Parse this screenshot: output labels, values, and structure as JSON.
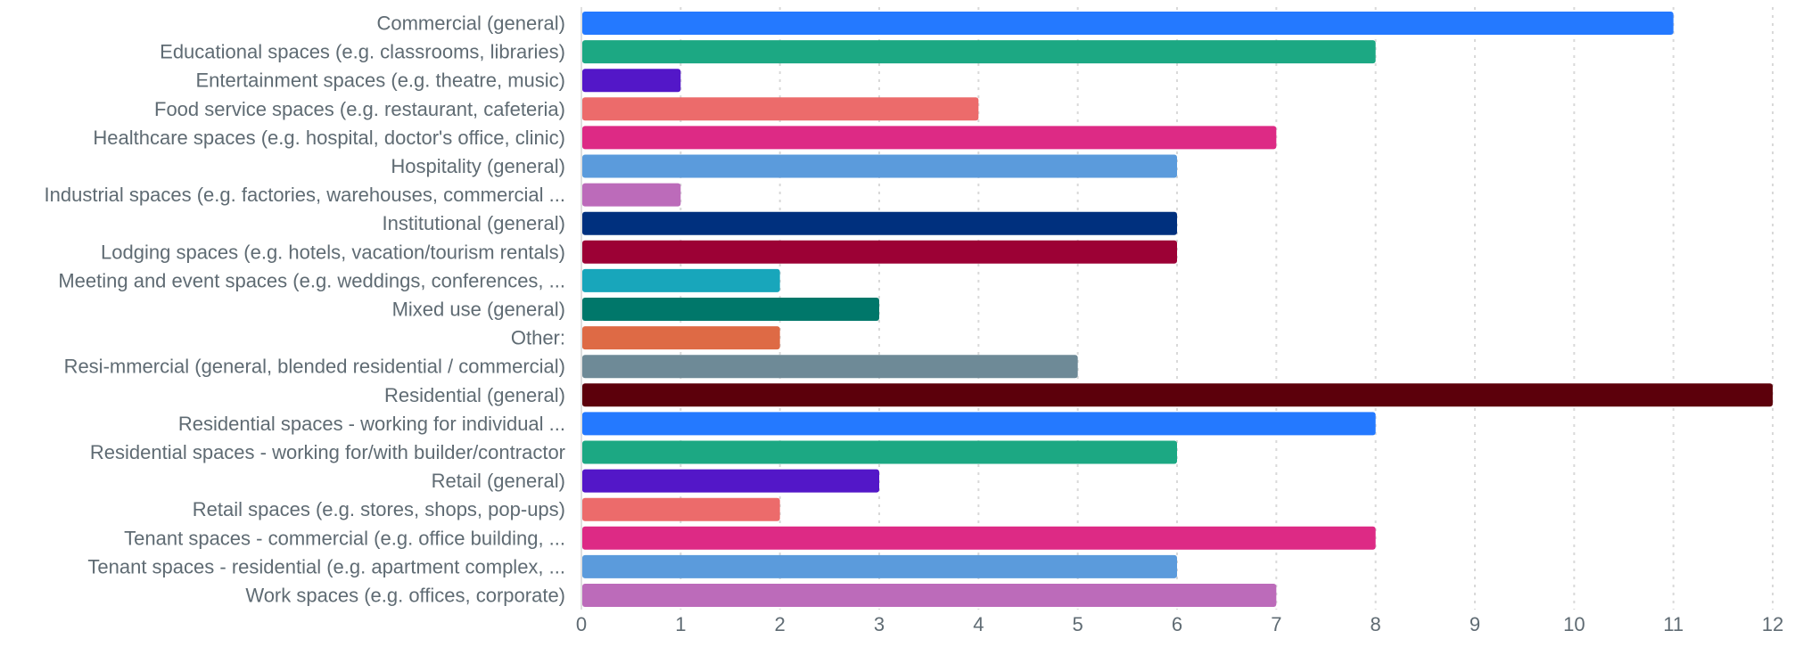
{
  "chart_data": {
    "type": "bar",
    "orientation": "horizontal",
    "categories": [
      "Commercial (general)",
      "Educational spaces (e.g. classrooms, libraries)",
      "Entertainment spaces (e.g. theatre, music)",
      "Food service spaces (e.g. restaurant, cafeteria)",
      "Healthcare spaces (e.g. hospital, doctor's office, clinic)",
      "Hospitality (general)",
      "Industrial spaces (e.g. factories, warehouses, commercial ...",
      "Institutional (general)",
      "Lodging spaces (e.g. hotels, vacation/tourism rentals)",
      "Meeting and event spaces (e.g. weddings, conferences, ...",
      "Mixed use (general)",
      "Other:",
      "Resi-mmercial (general, blended residential / commercial)",
      "Residential (general)",
      "Residential spaces - working for individual ...",
      "Residential spaces - working for/with builder/contractor",
      "Retail (general)",
      "Retail spaces (e.g. stores, shops, pop-ups)",
      "Tenant spaces - commercial (e.g. office building, ...",
      "Tenant spaces - residential (e.g. apartment complex, ...",
      "Work spaces (e.g. offices, corporate)"
    ],
    "values": [
      11,
      8,
      1,
      4,
      7,
      6,
      1,
      6,
      6,
      2,
      3,
      2,
      5,
      12,
      8,
      6,
      3,
      2,
      8,
      6,
      7
    ],
    "colors": [
      "#2479FF",
      "#1CA883",
      "#5317C8",
      "#EC6B6B",
      "#DD2A85",
      "#5B9BDC",
      "#BC6BBA",
      "#00307E",
      "#9C0135",
      "#18A6BB",
      "#00776A",
      "#DE6A45",
      "#6E8A97",
      "#5C000B",
      "#2479FF",
      "#1CA883",
      "#5317C8",
      "#EC6B6B",
      "#DD2A85",
      "#5B9BDC",
      "#BC6BBA"
    ],
    "xlim": [
      0,
      12
    ],
    "x_ticks": [
      "0",
      "1",
      "2",
      "3",
      "4",
      "5",
      "6",
      "7",
      "8",
      "9",
      "10",
      "11",
      "12"
    ],
    "grid": "vertical dotted",
    "legend": "none",
    "label_color": "#5f6b73",
    "grid_color": "#d9d9d9"
  }
}
